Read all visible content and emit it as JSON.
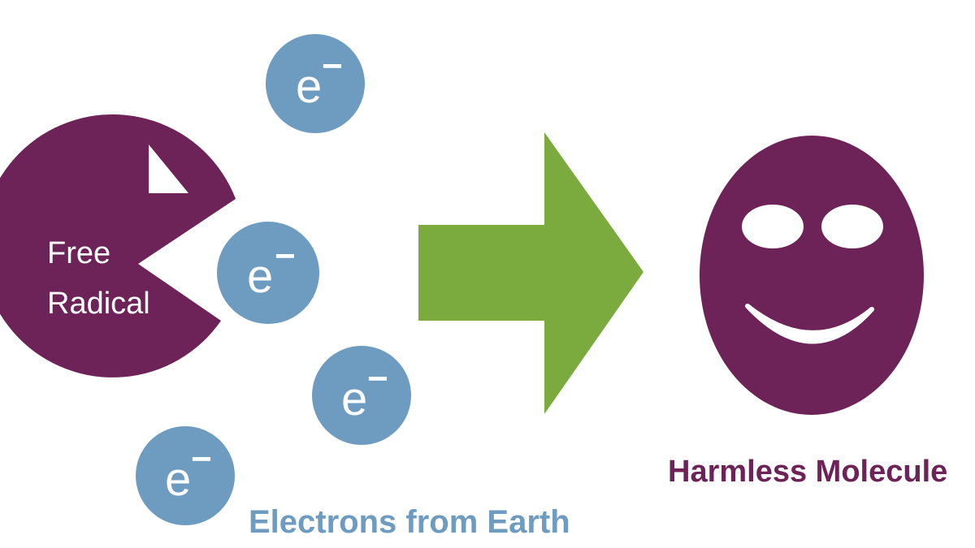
{
  "free_radical": {
    "line1": "Free",
    "line2": "Radical"
  },
  "electron": {
    "letter": "e",
    "sign": "−"
  },
  "electrons_caption": "Electrons from Earth",
  "molecule_caption": "Harmless Molecule",
  "colors": {
    "molecule": "#6e2358",
    "electron": "#6e9bc0",
    "arrow": "#7bab3f",
    "background": "#ffffff"
  },
  "icons": {
    "arrow": "right-arrow-icon",
    "face": "smiley-face-icon"
  }
}
